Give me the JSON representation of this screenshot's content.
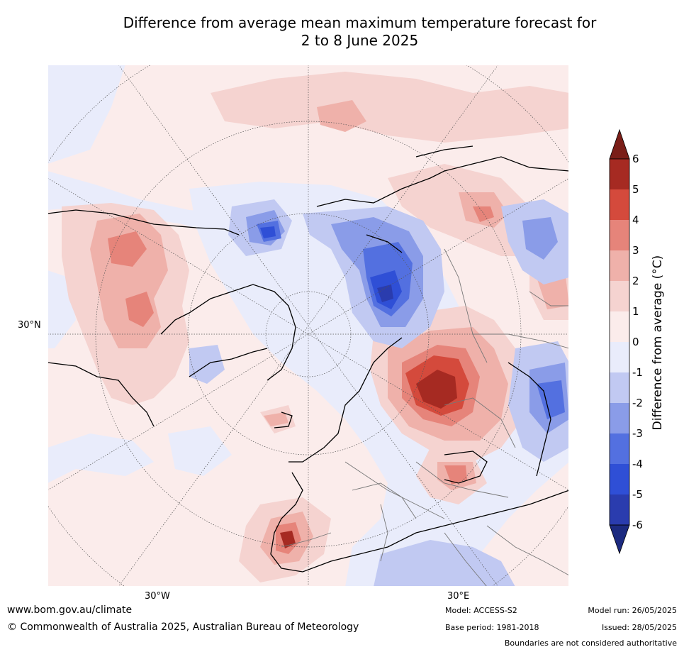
{
  "title_line1": "Difference from average mean maximum temperature forecast for",
  "title_line2": "2 to 8 June 2025",
  "lat_label": "30°N",
  "lon_labels": {
    "west": "30°W",
    "east": "30°E"
  },
  "colorbar": {
    "label": "Difference from average (°C)",
    "ticks": [
      "6",
      "5",
      "4",
      "3",
      "2",
      "1",
      "0",
      "-1",
      "-2",
      "-3",
      "-4",
      "-5",
      "-6"
    ],
    "colors": [
      "#7a1e18",
      "#a62a22",
      "#d44a3c",
      "#e6847a",
      "#efb1aa",
      "#f5d3d0",
      "#fbeceb",
      "#e9ecfb",
      "#c1c9f2",
      "#8a9ce8",
      "#5370e0",
      "#2f4fd6",
      "#2a3cae",
      "#1c2a80"
    ]
  },
  "palette": {
    "cool_1": "#e9ecfb",
    "cool_2": "#c1c9f2",
    "cool_3": "#8a9ce8",
    "cool_4": "#5370e0",
    "cool_5": "#2f4fd6",
    "cool_6": "#2a3cae",
    "warm_0": "#fbeceb",
    "warm_1": "#f5d3d0",
    "warm_2": "#efb1aa",
    "warm_3": "#e6847a",
    "warm_4": "#d44a3c",
    "warm_5": "#a62a22"
  },
  "footer": {
    "url": "www.bom.gov.au/climate",
    "copyright": "© Commonwealth of Australia 2025, Australian Bureau of Meteorology",
    "model": "Model: ACCESS-S2",
    "base_period": "Base period: 1981-2018",
    "model_run": "Model run: 26/05/2025",
    "issued": "Issued: 28/05/2025",
    "disclaimer": "Boundaries are not considered authoritative"
  }
}
